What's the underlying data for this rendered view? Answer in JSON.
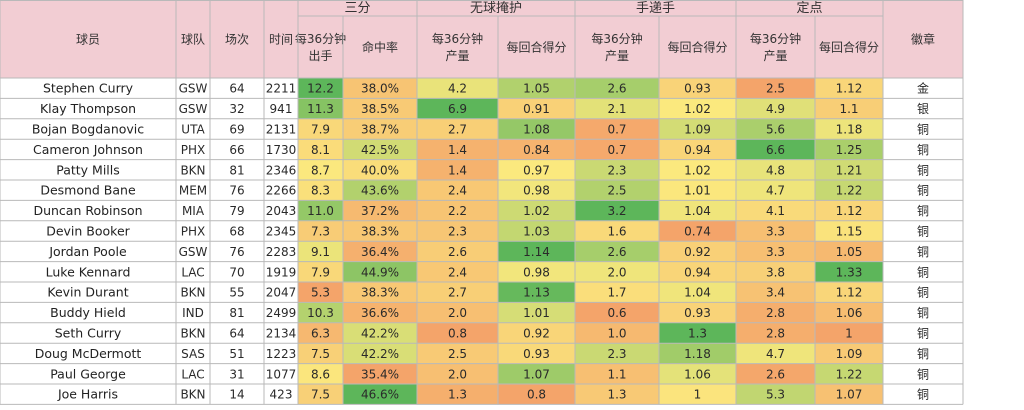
{
  "chart_data": {
    "type": "table",
    "groups": [
      {
        "label": "三分",
        "span": [
          4,
          5
        ]
      },
      {
        "label": "无球掩护",
        "span": [
          6,
          7
        ]
      },
      {
        "label": "手递手",
        "span": [
          8,
          9
        ]
      },
      {
        "label": "定点",
        "span": [
          10,
          11
        ]
      }
    ],
    "headers": [
      "球员",
      "球队",
      "场次",
      "时间",
      "每36分钟\n出手",
      "命中率",
      "每36分钟\n产量",
      "每回合得分",
      "每36分钟\n产量",
      "每回合得分",
      "每36分钟\n产量",
      "每回合得分",
      "徽章"
    ],
    "rows": [
      [
        "Stephen Curry",
        "GSW",
        "64",
        "2211",
        "12.2",
        "38.0%",
        "4.2",
        "1.05",
        "2.6",
        "0.93",
        "2.5",
        "1.12",
        "金"
      ],
      [
        "Klay Thompson",
        "GSW",
        "32",
        "941",
        "11.3",
        "38.5%",
        "6.9",
        "0.91",
        "2.1",
        "1.02",
        "4.9",
        "1.1",
        "银"
      ],
      [
        "Bojan Bogdanovic",
        "UTA",
        "69",
        "2131",
        "7.9",
        "38.7%",
        "2.7",
        "1.08",
        "0.7",
        "1.09",
        "5.6",
        "1.18",
        "铜"
      ],
      [
        "Cameron Johnson",
        "PHX",
        "66",
        "1730",
        "8.1",
        "42.5%",
        "1.4",
        "0.84",
        "0.7",
        "0.94",
        "6.6",
        "1.25",
        "铜"
      ],
      [
        "Patty Mills",
        "BKN",
        "81",
        "2346",
        "8.7",
        "40.0%",
        "1.4",
        "0.97",
        "2.3",
        "1.02",
        "4.8",
        "1.21",
        "铜"
      ],
      [
        "Desmond Bane",
        "MEM",
        "76",
        "2266",
        "8.3",
        "43.6%",
        "2.4",
        "0.98",
        "2.5",
        "1.01",
        "4.7",
        "1.22",
        "铜"
      ],
      [
        "Duncan Robinson",
        "MIA",
        "79",
        "2043",
        "11.0",
        "37.2%",
        "2.2",
        "1.02",
        "3.2",
        "1.04",
        "4.1",
        "1.12",
        "铜"
      ],
      [
        "Devin Booker",
        "PHX",
        "68",
        "2345",
        "7.3",
        "38.3%",
        "2.3",
        "1.03",
        "1.6",
        "0.74",
        "3.3",
        "1.15",
        "铜"
      ],
      [
        "Jordan Poole",
        "GSW",
        "76",
        "2283",
        "9.1",
        "36.4%",
        "2.6",
        "1.14",
        "2.6",
        "0.92",
        "3.3",
        "1.05",
        "铜"
      ],
      [
        "Luke Kennard",
        "LAC",
        "70",
        "1919",
        "7.9",
        "44.9%",
        "2.4",
        "0.98",
        "2.0",
        "0.94",
        "3.8",
        "1.33",
        "铜"
      ],
      [
        "Kevin Durant",
        "BKN",
        "55",
        "2047",
        "5.3",
        "38.3%",
        "2.7",
        "1.13",
        "1.7",
        "1.04",
        "3.4",
        "1.12",
        "铜"
      ],
      [
        "Buddy Hield",
        "IND",
        "81",
        "2499",
        "10.3",
        "36.6%",
        "2.0",
        "1.01",
        "0.6",
        "0.93",
        "2.8",
        "1.06",
        "铜"
      ],
      [
        "Seth Curry",
        "BKN",
        "64",
        "2134",
        "6.3",
        "42.2%",
        "0.8",
        "0.92",
        "1.0",
        "1.3",
        "2.8",
        "1",
        "铜"
      ],
      [
        "Doug McDermott",
        "SAS",
        "51",
        "1223",
        "7.5",
        "42.2%",
        "2.5",
        "0.93",
        "2.3",
        "1.18",
        "4.7",
        "1.09",
        "铜"
      ],
      [
        "Paul George",
        "LAC",
        "31",
        "1077",
        "8.6",
        "35.4%",
        "2.0",
        "1.07",
        "1.1",
        "1.06",
        "2.6",
        "1.22",
        "铜"
      ],
      [
        "Joe Harris",
        "BKN",
        "14",
        "423",
        "7.5",
        "46.6%",
        "1.3",
        "0.8",
        "1.3",
        "1",
        "5.3",
        "1.07",
        "铜"
      ]
    ],
    "heatmap_columns": [
      4,
      5,
      6,
      7,
      8,
      9,
      10,
      11
    ],
    "colors": {
      "header_bg": "#f2cdd3",
      "grid": "#b9b9b9",
      "low": "#f4a46a",
      "mid": "#fbe97e",
      "high": "#5db65a"
    }
  }
}
